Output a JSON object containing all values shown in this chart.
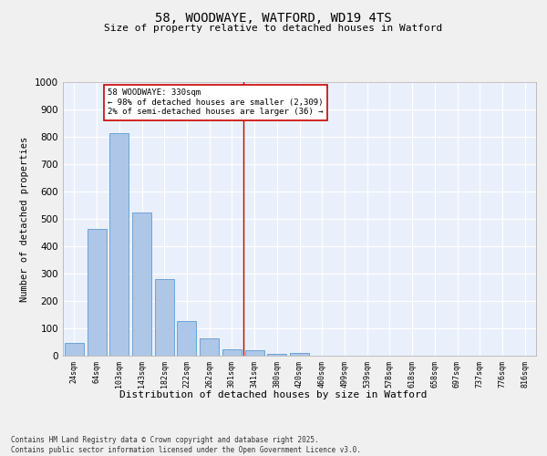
{
  "title": "58, WOODWAYE, WATFORD, WD19 4TS",
  "subtitle": "Size of property relative to detached houses in Watford",
  "xlabel": "Distribution of detached houses by size in Watford",
  "ylabel": "Number of detached properties",
  "categories": [
    "24sqm",
    "64sqm",
    "103sqm",
    "143sqm",
    "182sqm",
    "222sqm",
    "262sqm",
    "301sqm",
    "341sqm",
    "380sqm",
    "420sqm",
    "460sqm",
    "499sqm",
    "539sqm",
    "578sqm",
    "618sqm",
    "658sqm",
    "697sqm",
    "737sqm",
    "776sqm",
    "816sqm"
  ],
  "values": [
    47,
    465,
    815,
    525,
    280,
    128,
    62,
    25,
    20,
    8,
    10,
    0,
    0,
    0,
    0,
    0,
    0,
    0,
    0,
    0,
    0
  ],
  "bar_color": "#aec6e8",
  "bar_edge_color": "#5b9bd5",
  "vline_index": 8,
  "annotation_text": "58 WOODWAYE: 330sqm\n← 98% of detached houses are smaller (2,309)\n2% of semi-detached houses are larger (36) →",
  "annotation_box_color": "#ffffff",
  "annotation_box_edge_color": "#cc0000",
  "ylim": [
    0,
    1000
  ],
  "yticks": [
    0,
    100,
    200,
    300,
    400,
    500,
    600,
    700,
    800,
    900,
    1000
  ],
  "bg_color": "#eaf0fb",
  "grid_color": "#ffffff",
  "fig_bg_color": "#f0f0f0",
  "footer_line1": "Contains HM Land Registry data © Crown copyright and database right 2025.",
  "footer_line2": "Contains public sector information licensed under the Open Government Licence v3.0."
}
